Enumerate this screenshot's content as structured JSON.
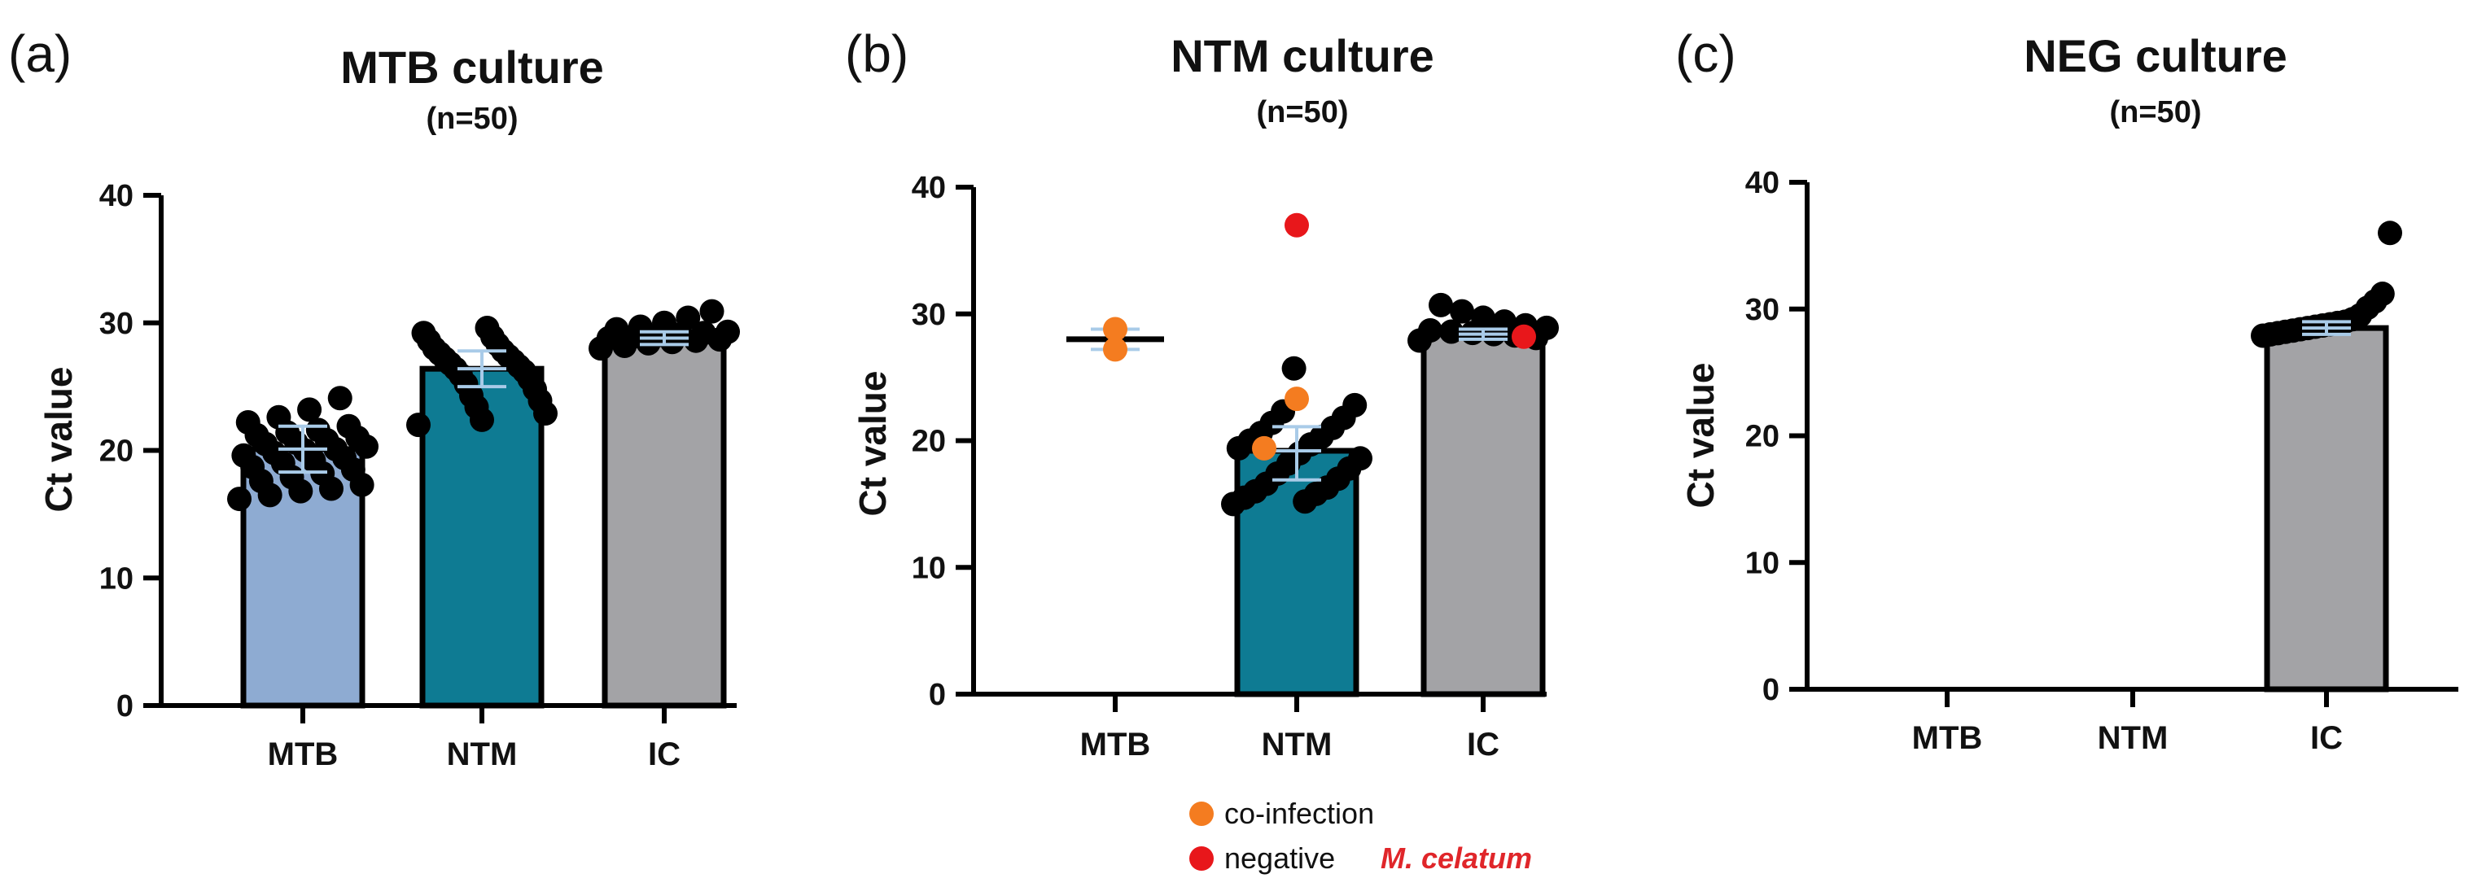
{
  "colors": {
    "MTB": "#8eabd2",
    "NTM": "#0e7b93",
    "IC": "#a3a3a6",
    "point": "#000000",
    "error_bar": "#a9cbe8",
    "co_infection": "#f47c20",
    "negative": "#e8171b"
  },
  "legend": {
    "items": [
      {
        "label": "co-infection",
        "color": "#f47c20"
      },
      {
        "label": "negative",
        "color": "#e8171b"
      }
    ],
    "note": "M. celatum"
  },
  "chart_data": [
    {
      "type": "bar",
      "panel_label": "(a)",
      "title": "MTB culture",
      "subtitle": "(n=50)",
      "ylabel": "Ct value",
      "xlabel": "",
      "ylim": [
        0,
        40
      ],
      "yticks": [
        "0",
        "10",
        "20",
        "30",
        "40"
      ],
      "categories": [
        "MTB",
        "NTM",
        "IC"
      ],
      "values": [
        20.1,
        26.4,
        28.8
      ],
      "error": [
        [
          18.3,
          21.9
        ],
        [
          25.0,
          27.8
        ],
        [
          28.3,
          29.3
        ]
      ],
      "points": {
        "MTB": [
          16.2,
          16.5,
          16.8,
          17.0,
          17.3,
          17.6,
          17.9,
          18.2,
          18.5,
          18.7,
          19.0,
          19.2,
          19.4,
          19.6,
          19.8,
          20.0,
          20.1,
          20.3,
          20.5,
          20.6,
          20.8,
          21.0,
          21.2,
          21.4,
          21.6,
          21.9,
          22.2,
          22.6,
          23.2,
          24.1
        ],
        "NTM": [
          22.0,
          22.4,
          22.9,
          23.4,
          23.9,
          24.3,
          24.8,
          25.2,
          25.6,
          25.9,
          26.2,
          26.4,
          26.6,
          26.8,
          27.0,
          27.2,
          27.4,
          27.6,
          27.8,
          28.0,
          28.3,
          28.6,
          28.9,
          29.2,
          29.6
        ],
        "IC": [
          28.0,
          28.2,
          28.4,
          28.5,
          28.6,
          28.7,
          28.8,
          28.9,
          29.0,
          29.1,
          29.2,
          29.3,
          29.5,
          29.7,
          30.0,
          30.4,
          30.9
        ]
      },
      "highlight_points": []
    },
    {
      "type": "bar",
      "panel_label": "(b)",
      "title": "NTM culture",
      "subtitle": "(n=50)",
      "ylabel": "Ct value",
      "xlabel": "",
      "ylim": [
        0,
        40
      ],
      "yticks": [
        "0",
        "10",
        "20",
        "30",
        "40"
      ],
      "categories": [
        "MTB",
        "NTM",
        "IC"
      ],
      "values": [
        null,
        19.2,
        28.4
      ],
      "line_values": [
        28.0,
        null,
        null
      ],
      "error": [
        [
          27.2,
          28.8
        ],
        [
          16.9,
          21.1
        ],
        [
          28.0,
          28.8
        ]
      ],
      "points": {
        "MTB": [],
        "NTM": [
          15.0,
          15.2,
          15.5,
          15.8,
          16.0,
          16.3,
          16.6,
          17.0,
          17.4,
          17.8,
          18.2,
          18.6,
          19.0,
          19.4,
          19.7,
          20.0,
          20.3,
          20.6,
          21.0,
          21.4,
          21.8,
          22.3,
          22.8,
          25.7
        ],
        "IC": [
          27.9,
          28.1,
          28.3,
          28.4,
          28.5,
          28.6,
          28.7,
          28.9,
          29.1,
          29.4,
          29.7,
          30.2,
          30.7
        ]
      },
      "highlight_points": [
        {
          "category": "MTB",
          "value": 28.8,
          "kind": "co-infection"
        },
        {
          "category": "MTB",
          "value": 27.2,
          "kind": "co-infection"
        },
        {
          "category": "NTM",
          "value": 23.3,
          "kind": "co-infection"
        },
        {
          "category": "NTM",
          "value": 19.4,
          "kind": "co-infection"
        },
        {
          "category": "NTM",
          "value": 37.0,
          "kind": "negative"
        },
        {
          "category": "IC",
          "value": 28.2,
          "kind": "negative"
        }
      ]
    },
    {
      "type": "bar",
      "panel_label": "(c)",
      "title": "NEG culture",
      "subtitle": "(n=50)",
      "ylabel": "Ct value",
      "xlabel": "",
      "ylim": [
        0,
        40
      ],
      "yticks": [
        "0",
        "10",
        "20",
        "30",
        "40"
      ],
      "categories": [
        "MTB",
        "NTM",
        "IC"
      ],
      "values": [
        null,
        null,
        28.5
      ],
      "error": [
        null,
        null,
        [
          28.0,
          29.0
        ]
      ],
      "points": {
        "MTB": [],
        "NTM": [],
        "IC": [
          27.9,
          28.0,
          28.1,
          28.2,
          28.3,
          28.4,
          28.5,
          28.6,
          28.7,
          28.8,
          28.9,
          29.0,
          29.2,
          29.5,
          30.1,
          30.6,
          31.2,
          36.0
        ]
      },
      "highlight_points": []
    }
  ]
}
